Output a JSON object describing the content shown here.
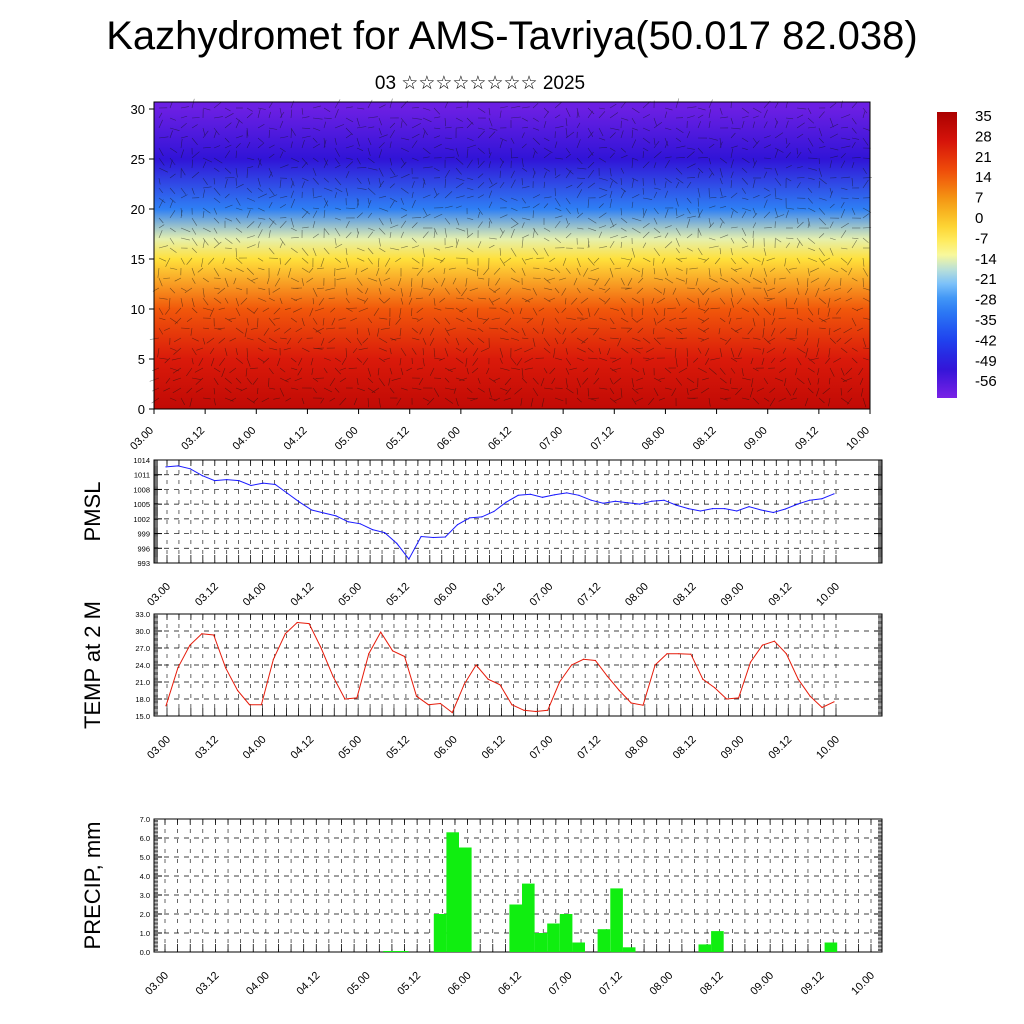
{
  "title": "Kazhydromet for AMS-Tavriya(50.017 82.038)",
  "subtitle": "03 ☆☆☆☆☆☆☆☆ 2025",
  "chart_data": [
    {
      "type": "heatmap",
      "name": "cross-section",
      "x_ticks": [
        "03.00",
        "03.12",
        "04.00",
        "04.12",
        "05.00",
        "05.12",
        "06.00",
        "06.12",
        "07.00",
        "07.12",
        "08.00",
        "08.12",
        "09.00",
        "09.12",
        "10.00"
      ],
      "y_ticks": [
        0,
        5,
        10,
        15,
        20,
        25,
        30
      ],
      "ylim": [
        0,
        30.7
      ],
      "colorbar_labels": [
        "35",
        "28",
        "21",
        "14",
        "7",
        "0",
        "-7",
        "-14",
        "-21",
        "-28",
        "-35",
        "-42",
        "-49",
        "-56"
      ],
      "colors": {
        "cold": "#3a22d8",
        "cool": "#4fa8f0",
        "mild": "#ffe84a",
        "warm": "#f08a10",
        "hot": "#e61b0a"
      },
      "temperature_profile": [
        {
          "height": 0,
          "value": 30
        },
        {
          "height": 5,
          "value": 24
        },
        {
          "height": 10,
          "value": 14
        },
        {
          "height": 15,
          "value": -5
        },
        {
          "height": 17,
          "value": -14
        },
        {
          "height": 20,
          "value": -30
        },
        {
          "height": 25,
          "value": -50
        },
        {
          "height": 30,
          "value": -58
        }
      ]
    },
    {
      "type": "line",
      "name": "PMSL",
      "ylabel": "PMSL",
      "yticks": [
        "1014",
        "1011",
        "1008",
        "1005",
        "1002",
        "999",
        "996",
        "993"
      ],
      "ylim": [
        993,
        1014
      ],
      "x_ticks": [
        "03.00",
        "03.12",
        "04.00",
        "04.12",
        "05.00",
        "05.12",
        "06.00",
        "06.12",
        "07.00",
        "07.12",
        "08.00",
        "08.12",
        "09.00",
        "09.12",
        "10.00"
      ],
      "color": "#1a1aff",
      "values": [
        1012.6,
        1012.8,
        1012.2,
        1010.8,
        1009.8,
        1010.0,
        1009.8,
        1008.8,
        1009.3,
        1009.0,
        1007.2,
        1005.4,
        1003.8,
        1003.2,
        1002.6,
        1001.4,
        1001.0,
        999.8,
        999.2,
        997.0,
        993.8,
        998.4,
        998.2,
        998.3,
        1000.8,
        1002.2,
        1002.4,
        1003.5,
        1005.4,
        1006.8,
        1007.0,
        1006.4,
        1006.9,
        1007.3,
        1006.8,
        1005.8,
        1005.2,
        1005.6,
        1005.3,
        1005.0,
        1005.6,
        1005.8,
        1004.8,
        1004.1,
        1003.6,
        1004.1,
        1004.1,
        1003.6,
        1004.5,
        1003.8,
        1003.3,
        1004.0,
        1005.0,
        1005.8,
        1006.1,
        1007.1
      ]
    },
    {
      "type": "line",
      "name": "TEMP at 2 M",
      "ylabel": "TEMP at 2 M",
      "yticks": [
        "33.0",
        "30.0",
        "27.0",
        "24.0",
        "21.0",
        "18.0",
        "15.0"
      ],
      "ylim": [
        15,
        33
      ],
      "x_ticks": [
        "03.00",
        "03.12",
        "04.00",
        "04.12",
        "05.00",
        "05.12",
        "06.00",
        "06.12",
        "07.00",
        "07.12",
        "08.00",
        "08.12",
        "09.00",
        "09.12",
        "10.00"
      ],
      "color": "#e61b0a",
      "values": [
        16.8,
        23.5,
        27.5,
        29.5,
        29.3,
        23.5,
        19.5,
        17.0,
        17.0,
        25.0,
        29.5,
        31.5,
        31.3,
        27.0,
        22.0,
        18.0,
        18.2,
        26.0,
        29.8,
        26.5,
        25.5,
        18.5,
        17.0,
        17.2,
        15.6,
        20.6,
        24.0,
        21.5,
        20.5,
        17.0,
        16.0,
        15.8,
        16.0,
        21.0,
        24.0,
        25.0,
        24.8,
        22.0,
        19.5,
        17.3,
        16.9,
        24.0,
        26.0,
        26.0,
        25.9,
        21.5,
        20.0,
        18.0,
        18.2,
        24.5,
        27.5,
        28.2,
        26.0,
        21.5,
        18.5,
        16.5,
        17.5
      ]
    },
    {
      "type": "bar",
      "name": "PRECIP",
      "ylabel": "PRECIP, mm",
      "yticks": [
        "7.0",
        "6.0",
        "5.0",
        "4.0",
        "3.0",
        "2.0",
        "1.0",
        "0.0"
      ],
      "ylim": [
        0,
        7
      ],
      "x_ticks": [
        "03.00",
        "03.12",
        "04.00",
        "04.12",
        "05.00",
        "05.12",
        "06.00",
        "06.12",
        "07.00",
        "07.12",
        "08.00",
        "08.12",
        "09.00",
        "09.12",
        "10.00"
      ],
      "color": "#10ee10",
      "values": [
        0,
        0,
        0,
        0,
        0,
        0,
        0,
        0,
        0,
        0,
        0,
        0,
        0,
        0,
        0,
        0,
        0,
        0.05,
        0.05,
        0,
        0,
        2.0,
        6.3,
        5.5,
        0,
        0,
        0,
        2.5,
        3.6,
        1.0,
        1.5,
        2.0,
        0.5,
        0,
        1.2,
        3.35,
        0.25,
        0,
        0,
        0,
        0,
        0,
        0.4,
        1.1,
        0,
        0,
        0,
        0,
        0,
        0,
        0,
        0,
        0.5,
        0,
        0,
        0
      ]
    }
  ]
}
